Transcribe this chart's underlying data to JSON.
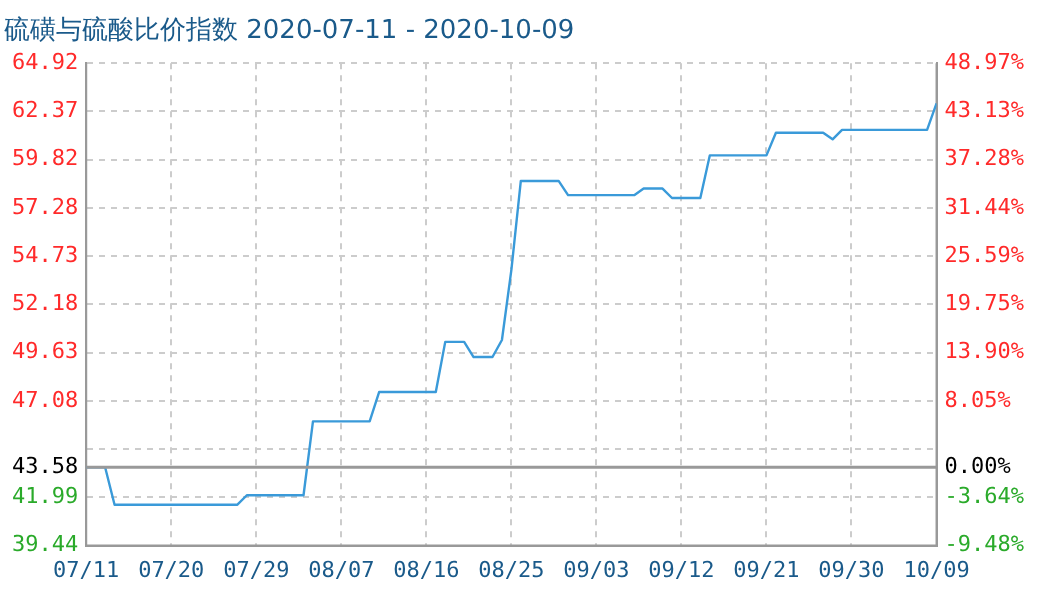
{
  "chart_data": {
    "type": "line",
    "title": "硫磺与硫酸比价指数 2020-07-11 - 2020-10-09",
    "x": [
      "2020-07-11",
      "2020-07-13",
      "2020-07-14",
      "2020-07-27",
      "2020-07-28",
      "2020-08-03",
      "2020-08-04",
      "2020-08-10",
      "2020-08-11",
      "2020-08-17",
      "2020-08-18",
      "2020-08-20",
      "2020-08-21",
      "2020-08-23",
      "2020-08-24",
      "2020-08-25",
      "2020-08-26",
      "2020-08-30",
      "2020-08-31",
      "2020-09-07",
      "2020-09-08",
      "2020-09-10",
      "2020-09-11",
      "2020-09-14",
      "2020-09-15",
      "2020-09-21",
      "2020-09-22",
      "2020-09-27",
      "2020-09-28",
      "2020-09-29",
      "2020-10-08",
      "2020-10-09"
    ],
    "series": [
      {
        "color": "#3a9ad9",
        "values": [
          43.58,
          43.58,
          41.6,
          41.6,
          42.1,
          42.1,
          46.0,
          46.0,
          47.55,
          47.55,
          50.2,
          50.2,
          49.4,
          49.4,
          50.3,
          54.0,
          58.7,
          58.7,
          57.95,
          57.95,
          58.3,
          58.3,
          57.8,
          57.8,
          60.05,
          60.05,
          61.25,
          61.25,
          60.9,
          61.4,
          61.4,
          62.8
        ]
      }
    ],
    "xlim": [
      "2020-07-11",
      "2020-10-09"
    ],
    "xticks": [
      {
        "value": "2020-07-11",
        "label": "07/11"
      },
      {
        "value": "2020-07-20",
        "label": "07/20"
      },
      {
        "value": "2020-07-29",
        "label": "07/29"
      },
      {
        "value": "2020-08-07",
        "label": "08/07"
      },
      {
        "value": "2020-08-16",
        "label": "08/16"
      },
      {
        "value": "2020-08-25",
        "label": "08/25"
      },
      {
        "value": "2020-09-03",
        "label": "09/03"
      },
      {
        "value": "2020-09-12",
        "label": "09/12"
      },
      {
        "value": "2020-09-21",
        "label": "09/21"
      },
      {
        "value": "2020-09-30",
        "label": "09/30"
      },
      {
        "value": "2020-10-09",
        "label": "10/09"
      }
    ],
    "ylim": [
      39.44,
      64.92
    ],
    "yticks": [
      39.44,
      41.99,
      43.58,
      {
        "value": 44.53,
        "label": null
      },
      47.08,
      49.63,
      52.18,
      54.73,
      57.28,
      59.82,
      62.37,
      64.92
    ],
    "y2lim": [
      -9.48,
      48.97
    ],
    "y2ticks": [
      {
        "value": -9.48,
        "label": "-9.48%"
      },
      {
        "value": -3.64,
        "label": "-3.64%"
      },
      {
        "value": 0,
        "label": "0.00%"
      },
      {
        "value": 8.05,
        "label": "8.05%"
      },
      {
        "value": 13.9,
        "label": "13.90%"
      },
      {
        "value": 19.75,
        "label": "19.75%"
      },
      {
        "value": 25.59,
        "label": "25.59%"
      },
      {
        "value": 31.44,
        "label": "31.44%"
      },
      {
        "value": 37.28,
        "label": "37.28%"
      },
      {
        "value": 43.13,
        "label": "43.13%"
      },
      {
        "value": 48.97,
        "label": "48.97%"
      }
    ],
    "ref_lines": [
      {
        "axis": "y",
        "value": 43.58,
        "color": "#999999"
      }
    ],
    "grid": true,
    "legend": false,
    "marker": "none",
    "line_style": "solid"
  }
}
